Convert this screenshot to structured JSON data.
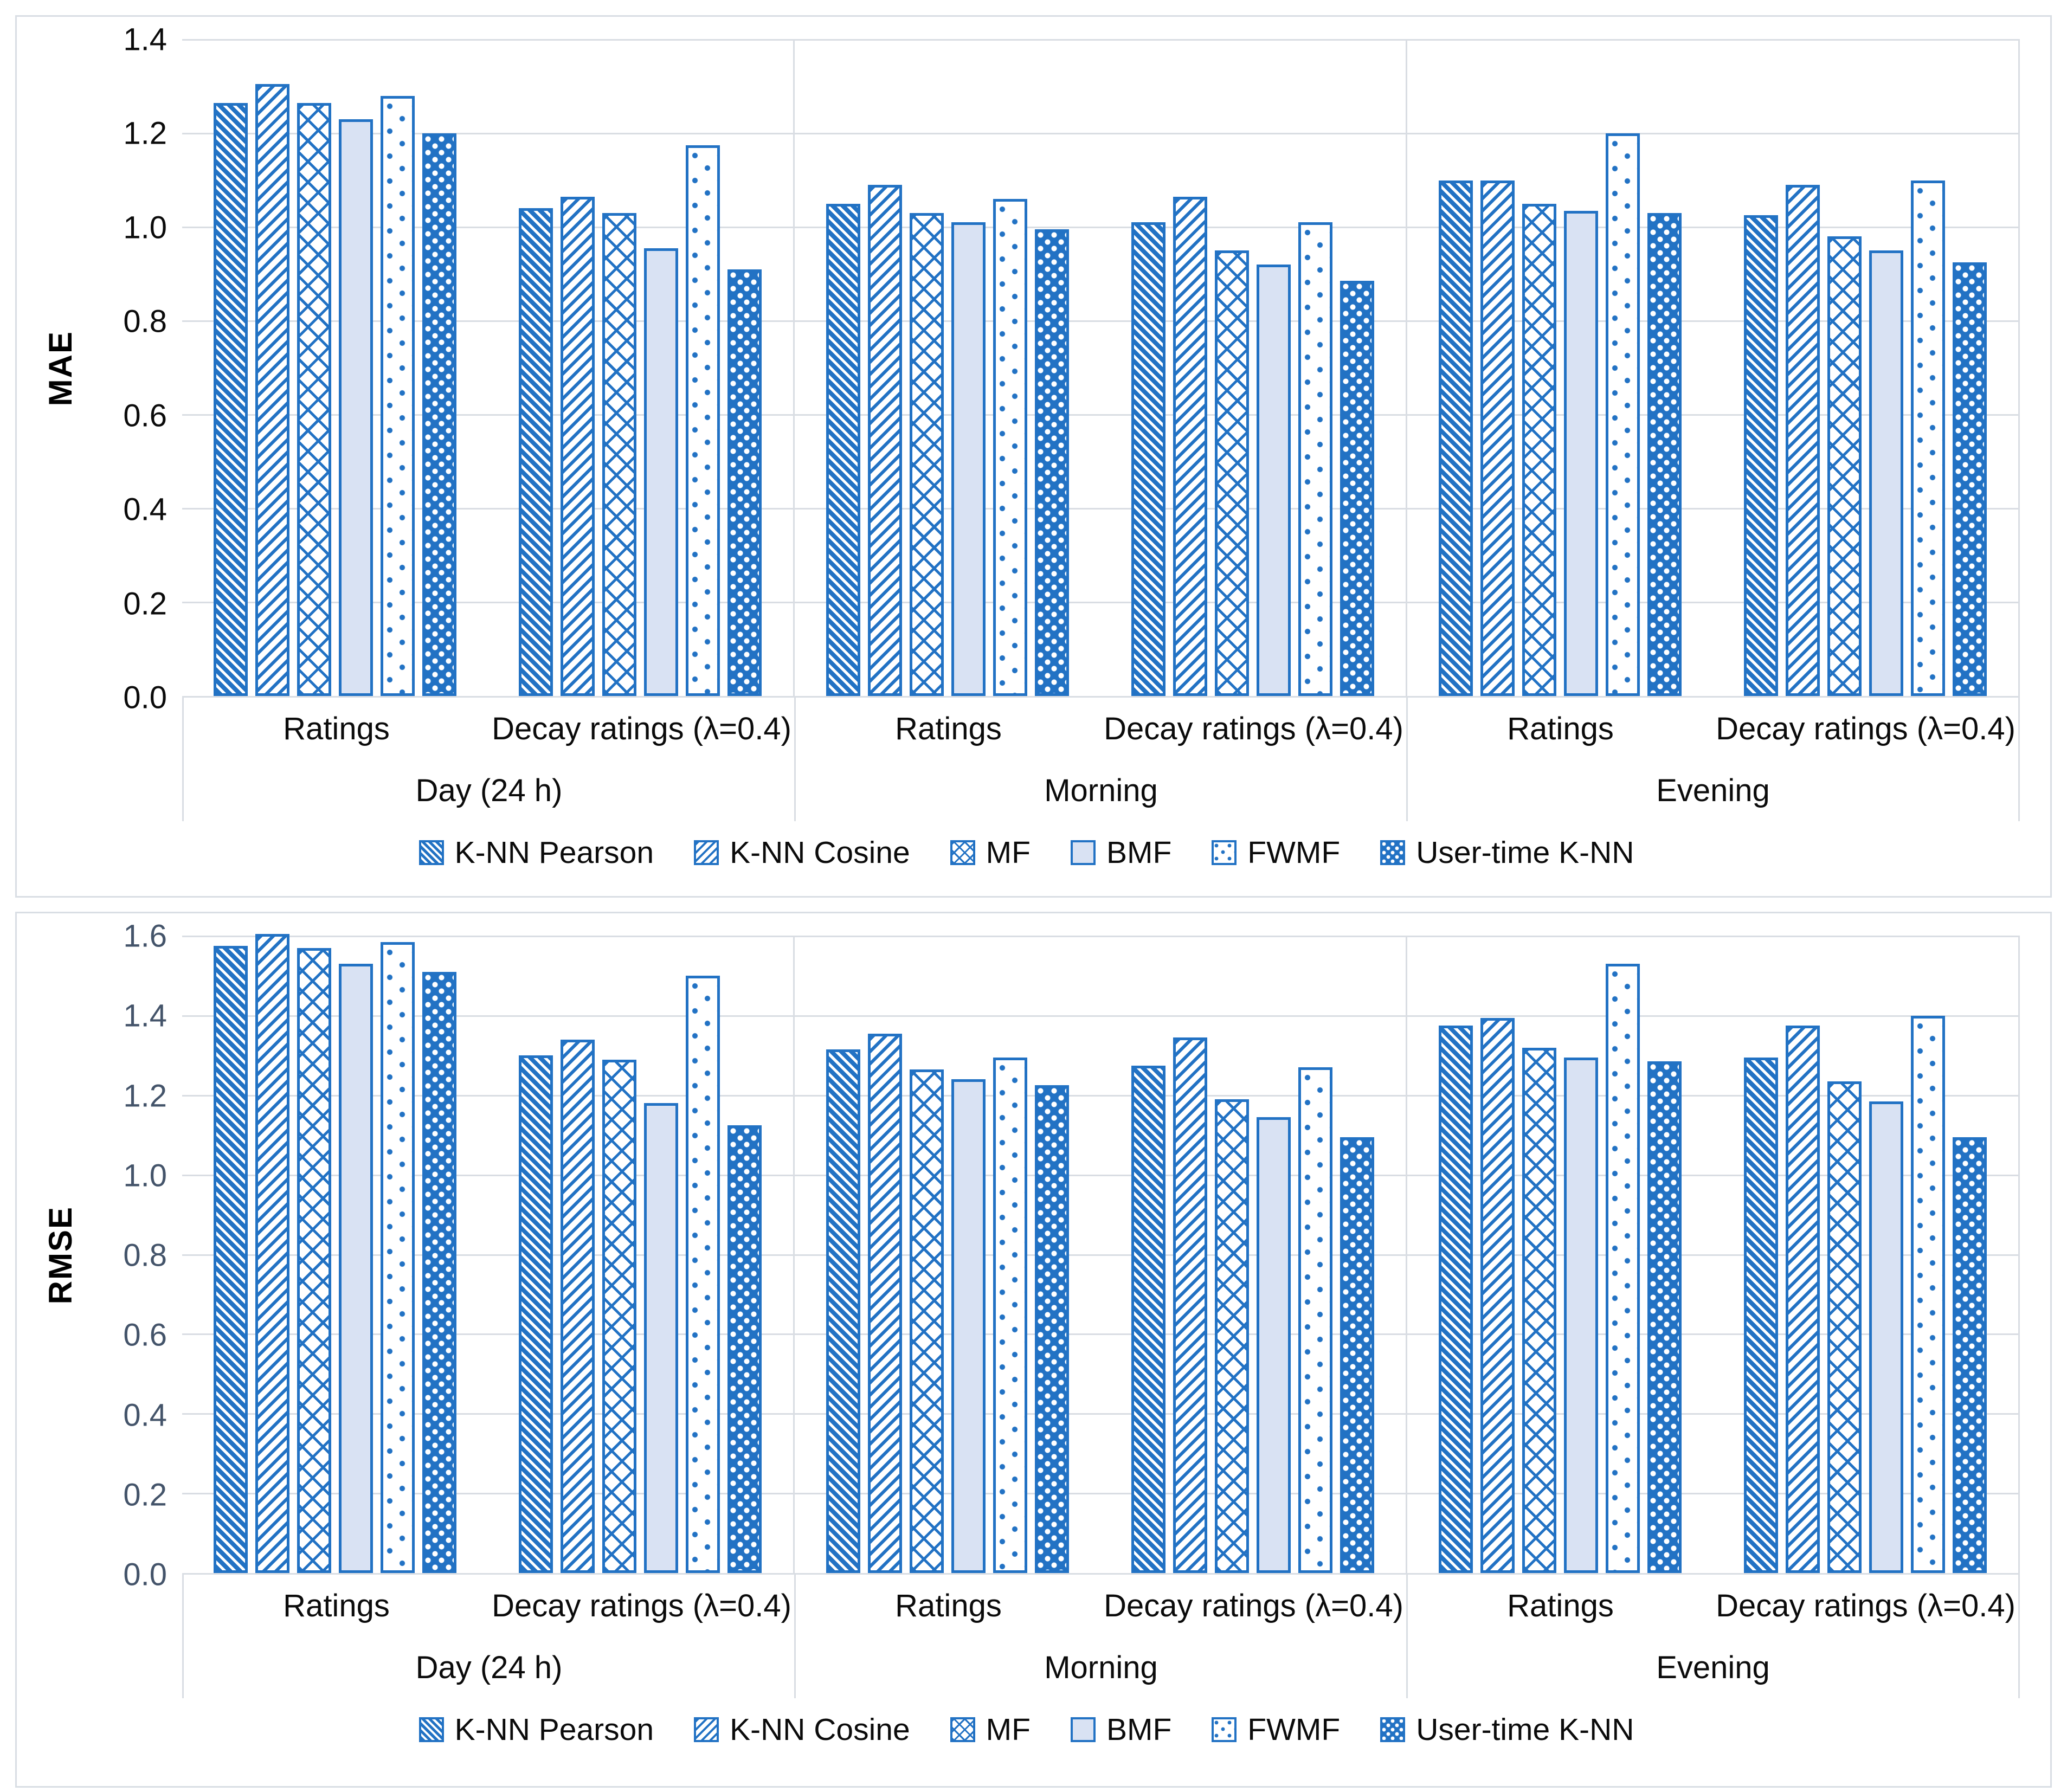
{
  "colors": {
    "accent": "#2272C4",
    "light_fill": "#D9E2F3",
    "gridline": "#D9DDE3",
    "mae_tick_color": "#0B0B0B",
    "rmse_tick_color": "#44546A"
  },
  "chart_data": [
    {
      "type": "bar",
      "title": "",
      "ylabel": "MAE",
      "xlabel": "",
      "ylim": [
        0,
        1.4
      ],
      "ytick_step": 0.2,
      "grid": true,
      "legend_position": "bottom",
      "yticks": [
        "1.4",
        "1.2",
        "1.0",
        "0.8",
        "0.6",
        "0.4",
        "0.2",
        "0.0"
      ],
      "series_names": [
        "K-NN Pearson",
        "K-NN Cosine",
        "MF",
        "BMF",
        "FWMF",
        "User-time K-NN"
      ],
      "series_patterns": [
        "diagonal-down-stripes",
        "diagonal-up-stripes",
        "diamond-crosshatch",
        "solid-light-blue",
        "white-sparse-dots",
        "blue-white-dots"
      ],
      "groups": [
        {
          "period": "Day (24 h)",
          "subgroups": [
            {
              "label": "Ratings",
              "values": [
                1.265,
                1.305,
                1.265,
                1.23,
                1.28,
                1.2
              ]
            },
            {
              "label": "Decay ratings (λ=0.4)",
              "values": [
                1.04,
                1.065,
                1.03,
                0.955,
                1.175,
                0.91
              ]
            }
          ]
        },
        {
          "period": "Morning",
          "subgroups": [
            {
              "label": "Ratings",
              "values": [
                1.05,
                1.09,
                1.03,
                1.01,
                1.06,
                0.995
              ]
            },
            {
              "label": "Decay ratings (λ=0.4)",
              "values": [
                1.01,
                1.065,
                0.95,
                0.92,
                1.01,
                0.885
              ]
            }
          ]
        },
        {
          "period": "Evening",
          "subgroups": [
            {
              "label": "Ratings",
              "values": [
                1.1,
                1.1,
                1.05,
                1.035,
                1.2,
                1.03
              ]
            },
            {
              "label": "Decay ratings (λ=0.4)",
              "values": [
                1.025,
                1.09,
                0.98,
                0.95,
                1.1,
                0.925
              ]
            }
          ]
        }
      ]
    },
    {
      "type": "bar",
      "title": "",
      "ylabel": "RMSE",
      "xlabel": "",
      "ylim": [
        0,
        1.6
      ],
      "ytick_step": 0.2,
      "grid": true,
      "legend_position": "bottom",
      "yticks": [
        "1.6",
        "1.4",
        "1.2",
        "1.0",
        "0.8",
        "0.6",
        "0.4",
        "0.2",
        "0.0"
      ],
      "series_names": [
        "K-NN Pearson",
        "K-NN Cosine",
        "MF",
        "BMF",
        "FWMF",
        "User-time K-NN"
      ],
      "series_patterns": [
        "diagonal-down-stripes",
        "diagonal-up-stripes",
        "diamond-crosshatch",
        "solid-light-blue",
        "white-sparse-dots",
        "blue-white-dots"
      ],
      "groups": [
        {
          "period": "Day (24 h)",
          "subgroups": [
            {
              "label": "Ratings",
              "values": [
                1.575,
                1.605,
                1.57,
                1.53,
                1.585,
                1.51
              ]
            },
            {
              "label": "Decay ratings (λ=0.4)",
              "values": [
                1.3,
                1.34,
                1.29,
                1.18,
                1.5,
                1.125
              ]
            }
          ]
        },
        {
          "period": "Morning",
          "subgroups": [
            {
              "label": "Ratings",
              "values": [
                1.315,
                1.355,
                1.265,
                1.24,
                1.295,
                1.225
              ]
            },
            {
              "label": "Decay ratings (λ=0.4)",
              "values": [
                1.275,
                1.345,
                1.19,
                1.145,
                1.27,
                1.095
              ]
            }
          ]
        },
        {
          "period": "Evening",
          "subgroups": [
            {
              "label": "Ratings",
              "values": [
                1.375,
                1.395,
                1.32,
                1.295,
                1.53,
                1.285
              ]
            },
            {
              "label": "Decay ratings (λ=0.4)",
              "values": [
                1.295,
                1.375,
                1.235,
                1.185,
                1.4,
                1.095
              ]
            }
          ]
        }
      ]
    }
  ]
}
